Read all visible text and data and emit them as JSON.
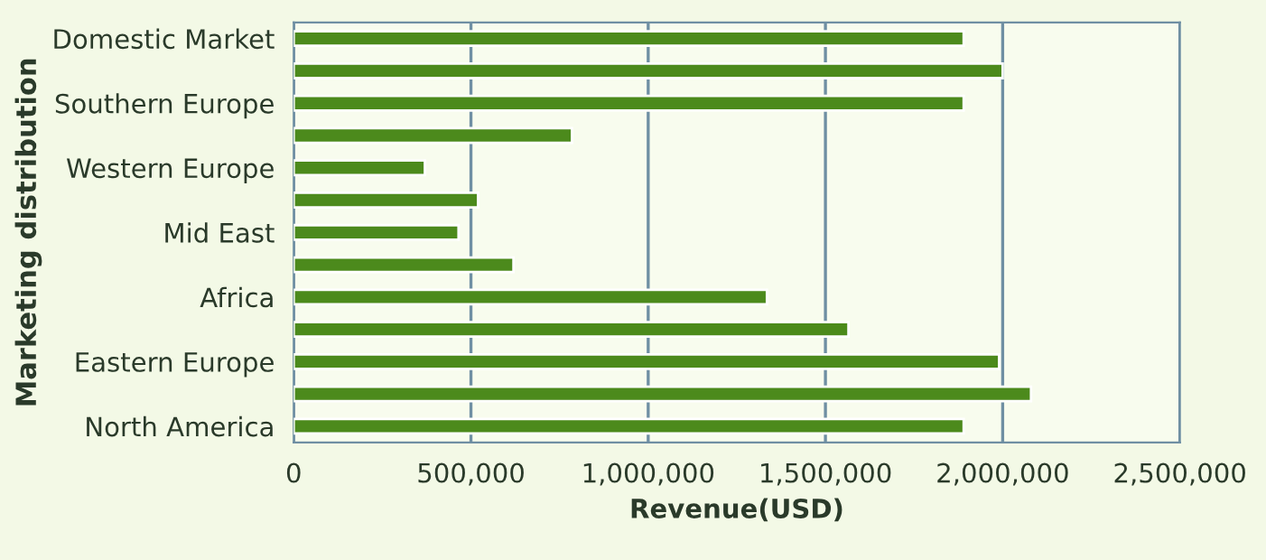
{
  "chart_data": {
    "type": "bar",
    "orientation": "horizontal",
    "xlabel": "Revenue(USD)",
    "ylabel": "Marketing distribution",
    "categories": [
      "Domestic Market",
      null,
      "Southern Europe",
      null,
      "Western Europe",
      null,
      "Mid East",
      null,
      "Africa",
      null,
      "Eastern Europe",
      null,
      "North America"
    ],
    "values": [
      1890000,
      2000000,
      1890000,
      785000,
      370000,
      520000,
      465000,
      620000,
      1335000,
      1565000,
      1990000,
      2080000,
      1890000
    ],
    "color": "#4c8a1c",
    "xlim": [
      0,
      2500000
    ],
    "xticks": [
      {
        "value": 0,
        "label": "0"
      },
      {
        "value": 500000,
        "label": "500,000"
      },
      {
        "value": 1000000,
        "label": "1,000,000"
      },
      {
        "value": 1500000,
        "label": "1,500,000"
      },
      {
        "value": 2000000,
        "label": "2,000,000"
      },
      {
        "value": 2500000,
        "label": "2,500,000"
      }
    ],
    "grid": "x"
  }
}
